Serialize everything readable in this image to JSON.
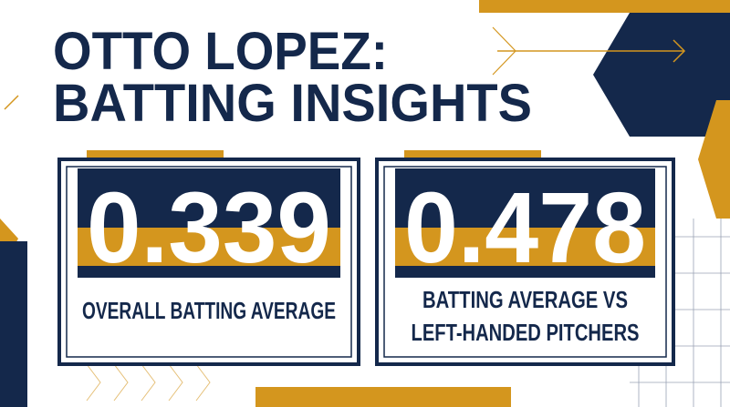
{
  "header": {
    "title_lines": [
      "OTTO LOPEZ:",
      "BATTING INSIGHTS"
    ]
  },
  "cards": [
    {
      "value": "0.339",
      "label_lines": [
        "OVERALL BATTING AVERAGE"
      ]
    },
    {
      "value": "0.478",
      "label_lines": [
        "BATTING AVERAGE VS",
        "LEFT-HANDED PITCHERS"
      ]
    }
  ]
}
